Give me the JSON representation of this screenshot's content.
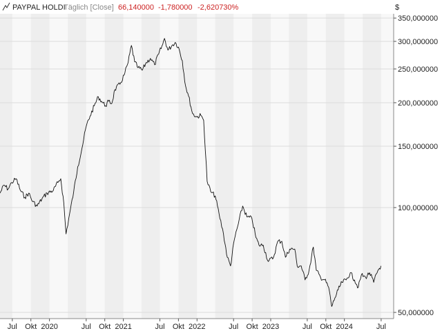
{
  "header": {
    "instrument": "PAYPAL HOLDI",
    "period": "Täglich [Close]",
    "last": "66,140000",
    "change": "-1,780000",
    "change_pct": "-2,620730%",
    "currency": "$"
  },
  "colors": {
    "line": "#111111",
    "band_dark": "#eeeeee",
    "band_light": "#f8f8f8",
    "grid": "#dcdcdc",
    "negative": "#cc2222",
    "muted": "#888888"
  },
  "chart_data": {
    "type": "line",
    "title": "PAYPAL HOLDI",
    "xlabel": "",
    "ylabel": "",
    "y_scale": "log",
    "ylim": [
      48,
      360
    ],
    "x_range": [
      "2019-05-01",
      "2024-09-01"
    ],
    "y_ticks": [
      {
        "value": 50,
        "label": "50,000000"
      },
      {
        "value": 100,
        "label": "100,000000"
      },
      {
        "value": 150,
        "label": "150,000000"
      },
      {
        "value": 200,
        "label": "200,000000"
      },
      {
        "value": 250,
        "label": "250,000000"
      },
      {
        "value": 300,
        "label": "300,000000"
      },
      {
        "value": 350,
        "label": "350,000000"
      }
    ],
    "x_ticks": [
      {
        "date": "2019-07-01",
        "label": "Jul"
      },
      {
        "date": "2019-10-01",
        "label": "Okt"
      },
      {
        "date": "2020-01-01",
        "label": "2020"
      },
      {
        "date": "2020-07-01",
        "label": "Jul"
      },
      {
        "date": "2020-10-01",
        "label": "Okt"
      },
      {
        "date": "2021-01-01",
        "label": "2021"
      },
      {
        "date": "2021-07-01",
        "label": "Jul"
      },
      {
        "date": "2021-10-01",
        "label": "Okt"
      },
      {
        "date": "2022-01-01",
        "label": "2022"
      },
      {
        "date": "2022-07-01",
        "label": "Jul"
      },
      {
        "date": "2022-10-01",
        "label": "Okt"
      },
      {
        "date": "2023-01-01",
        "label": "2023"
      },
      {
        "date": "2023-07-01",
        "label": "Jul"
      },
      {
        "date": "2023-10-01",
        "label": "Okt"
      },
      {
        "date": "2024-01-01",
        "label": "2024"
      },
      {
        "date": "2024-07-01",
        "label": "Jul"
      }
    ],
    "bands": [
      {
        "from": "2019-05-01",
        "to": "2019-07-01"
      },
      {
        "from": "2019-10-01",
        "to": "2020-01-01"
      },
      {
        "from": "2020-04-01",
        "to": "2020-07-01"
      },
      {
        "from": "2020-10-01",
        "to": "2021-01-01"
      },
      {
        "from": "2021-04-01",
        "to": "2021-07-01"
      },
      {
        "from": "2021-10-01",
        "to": "2022-01-01"
      },
      {
        "from": "2022-04-01",
        "to": "2022-07-01"
      },
      {
        "from": "2022-10-01",
        "to": "2023-01-01"
      },
      {
        "from": "2023-04-01",
        "to": "2023-07-01"
      },
      {
        "from": "2023-10-01",
        "to": "2024-01-01"
      },
      {
        "from": "2024-04-01",
        "to": "2024-07-01"
      }
    ],
    "series": [
      {
        "x": [
          "2019-05-01",
          "2019-05-21",
          "2019-06-10",
          "2019-06-28",
          "2019-07-20",
          "2019-08-10",
          "2019-09-01",
          "2019-09-20",
          "2019-10-10",
          "2019-11-01",
          "2019-11-25",
          "2019-12-20",
          "2020-01-20",
          "2020-02-12",
          "2020-02-26",
          "2020-03-12",
          "2020-03-23",
          "2020-04-10",
          "2020-04-30",
          "2020-05-20",
          "2020-06-10",
          "2020-07-01",
          "2020-07-20",
          "2020-08-10",
          "2020-08-30",
          "2020-09-15",
          "2020-10-05",
          "2020-10-20",
          "2020-11-05",
          "2020-11-20",
          "2020-12-15",
          "2021-01-05",
          "2021-01-25",
          "2021-02-10",
          "2021-02-26",
          "2021-03-15",
          "2021-04-05",
          "2021-04-25",
          "2021-05-15",
          "2021-06-05",
          "2021-06-25",
          "2021-07-15",
          "2021-07-24",
          "2021-08-10",
          "2021-08-30",
          "2021-09-15",
          "2021-10-01",
          "2021-10-20",
          "2021-11-05",
          "2021-11-20",
          "2021-12-10",
          "2021-12-31",
          "2022-01-20",
          "2022-02-03",
          "2022-02-20",
          "2022-03-10",
          "2022-04-01",
          "2022-04-20",
          "2022-05-12",
          "2022-05-31",
          "2022-06-16",
          "2022-07-05",
          "2022-07-25",
          "2022-08-15",
          "2022-09-05",
          "2022-09-30",
          "2022-10-20",
          "2022-11-04",
          "2022-11-25",
          "2022-12-20",
          "2023-01-15",
          "2023-02-05",
          "2023-02-25",
          "2023-03-15",
          "2023-04-05",
          "2023-04-30",
          "2023-05-12",
          "2023-06-01",
          "2023-06-20",
          "2023-07-10",
          "2023-07-31",
          "2023-08-15",
          "2023-09-05",
          "2023-09-25",
          "2023-10-15",
          "2023-10-30",
          "2023-11-15",
          "2023-12-01",
          "2023-12-20",
          "2024-01-10",
          "2024-01-30",
          "2024-02-20",
          "2024-03-10",
          "2024-03-25",
          "2024-04-15",
          "2024-05-05",
          "2024-05-25",
          "2024-06-15",
          "2024-06-30"
        ],
        "y": [
          110,
          116,
          113,
          118,
          121,
          112,
          107,
          110,
          104,
          101,
          106,
          110,
          112,
          118,
          121,
          103,
          84,
          96,
          111,
          131,
          148,
          171,
          183,
          196,
          208,
          202,
          196,
          202,
          199,
          218,
          226,
          240,
          261,
          292,
          262,
          252,
          248,
          261,
          268,
          257,
          276,
          294,
          306,
          283,
          292,
          298,
          289,
          264,
          224,
          209,
          186,
          182,
          184,
          178,
          119,
          111,
          108,
          96,
          84,
          72,
          68,
          81,
          90,
          101,
          94,
          93,
          82,
          78,
          78,
          70,
          72,
          80,
          80,
          72,
          76,
          76,
          68,
          68,
          62,
          66,
          77,
          66,
          63,
          62,
          59,
          52,
          55,
          58,
          61,
          62,
          65,
          62,
          59,
          64,
          63,
          65,
          61,
          66,
          68
        ]
      }
    ]
  }
}
